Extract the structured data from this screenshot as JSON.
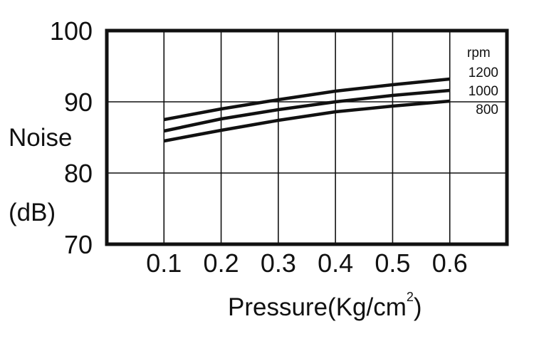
{
  "chart_data": {
    "type": "line",
    "title": "",
    "xlabel": "Pressure(Kg/cm",
    "xlabel_superscript": "2",
    "xlabel_close": ")",
    "ylabel_line1": "Noise",
    "ylabel_line2": "(dB)",
    "xlim": [
      0,
      0.7
    ],
    "ylim": [
      70,
      100
    ],
    "x_ticks": [
      0.1,
      0.2,
      0.3,
      0.4,
      0.5,
      0.6
    ],
    "x_tick_labels": [
      "0.1",
      "0.2",
      "0.3",
      "0.4",
      "0.5",
      "0.6"
    ],
    "y_ticks": [
      70,
      80,
      90,
      100
    ],
    "y_tick_labels": [
      "70",
      "80",
      "90",
      "100"
    ],
    "grid": true,
    "legend_title": "rpm",
    "legend_placement": "right",
    "x": [
      0.1,
      0.2,
      0.3,
      0.4,
      0.5,
      0.6
    ],
    "series": [
      {
        "name": "1200",
        "values": [
          87.5,
          89.0,
          90.3,
          91.5,
          92.4,
          93.2
        ]
      },
      {
        "name": "1000",
        "values": [
          85.9,
          87.6,
          88.9,
          90.0,
          90.9,
          91.6
        ]
      },
      {
        "name": "800",
        "values": [
          84.5,
          86.0,
          87.4,
          88.6,
          89.4,
          90.1
        ]
      }
    ],
    "colors": {
      "line": "#111111",
      "grid": "#111111",
      "background": "#ffffff"
    }
  }
}
